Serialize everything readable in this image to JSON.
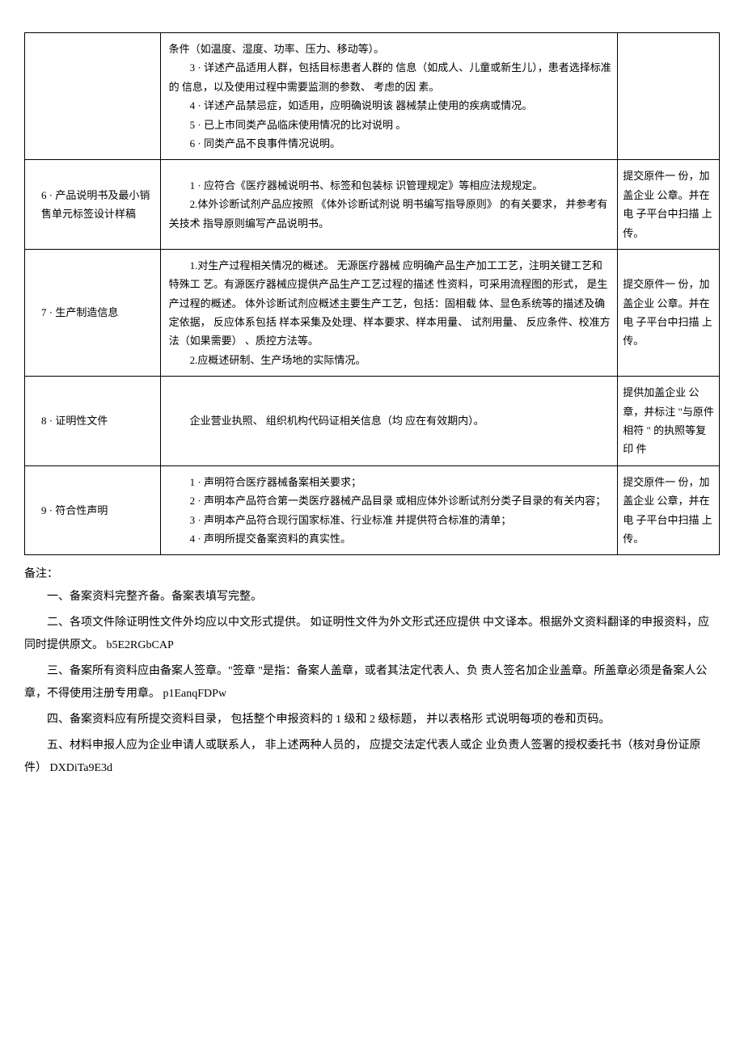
{
  "table": {
    "rows": [
      {
        "label": "",
        "content": "条件（如温度、湿度、功率、压力、移动等）。\n        3 · 详述产品适用人群，包括目标患者人群的 信息（如成人、儿童或新生儿），患者选择标准的 信息，以及使用过程中需要监测的参数、 考虑的因 素。\n        4 · 详述产品禁忌症，如适用，应明确说明该 器械禁止使用的疾病或情况。\n        5 · 已上市同类产品临床使用情况的比对说明 。\n        6 · 同类产品不良事件情况说明。",
        "note": ""
      },
      {
        "label": "6 · 产品说明书及最小销售单元标签设计样稿",
        "content": "        1 · 应符合《医疗器械说明书、标签和包装标 识管理规定》等相应法规规定。\n        2.体外诊断试剂产品应按照 《体外诊断试剂说 明书编写指导原则》 的有关要求， 并参考有关技术 指导原则编写产品说明书。",
        "note": "提交原件一 份，加盖企业 公章。并在电 子平台中扫描 上传。"
      },
      {
        "label": "7 · 生产制造信息",
        "content": "        1.对生产过程相关情况的概述。 无源医疗器械 应明确产品生产加工工艺，注明关键工艺和特殊工 艺。有源医疗器械应提供产品生产工艺过程的描述 性资料，可采用流程图的形式， 是生产过程的概述。 体外诊断试剂应概述主要生产工艺，包括：固相载 体、显色系统等的描述及确定依据， 反应体系包括 样本采集及处理、样本要求、样本用量、 试剂用量、 反应条件、校准方法（如果需要） 、质控方法等。\n        2.应概述研制、生产场地的实际情况。",
        "note": "提交原件一 份，加盖企业 公章。并在电 子平台中扫描 上传。"
      },
      {
        "label": "8 · 证明性文件",
        "content": "        企业营业执照、 组织机构代码证相关信息（均 应在有效期内）。",
        "note": "提供加盖企业 公章，并标注 \"与原件相符 \" 的执照等复印 件"
      },
      {
        "label": "9 · 符合性声明",
        "content": "        1 · 声明符合医疗器械备案相关要求；\n        2 · 声明本产品符合第一类医疗器械产品目录 或相应体外诊断试剂分类子目录的有关内容；\n        3 · 声明本产品符合现行国家标准、行业标准 并提供符合标准的清单；\n        4 · 声明所提交备案资料的真实性。",
        "note": "提交原件一 份，加盖企业 公章，并在电 子平台中扫描 上传。"
      }
    ]
  },
  "notes": {
    "title": "备注：",
    "items": [
      "一、备案资料完整齐备。备案表填写完整。",
      "二、各项文件除证明性文件外均应以中文形式提供。 如证明性文件为外文形式还应提供 中文译本。根据外文资料翻译的申报资料，应同时提供原文。 b5E2RGbCAP",
      "三、备案所有资料应由备案人签章。\"签章 \"是指：备案人盖章，或者其法定代表人、负 责人签名加企业盖章。所盖章必须是备案人公章，不得使用注册专用章。 p1EanqFDPw",
      "四、备案资料应有所提交资料目录， 包括整个申报资料的 1 级和 2 级标题， 并以表格形 式说明每项的卷和页码。",
      "五、材料申报人应为企业申请人或联系人， 非上述两种人员的， 应提交法定代表人或企 业负责人签署的授权委托书（核对身份证原件）                                                    DXDiTa9E3d"
    ]
  }
}
